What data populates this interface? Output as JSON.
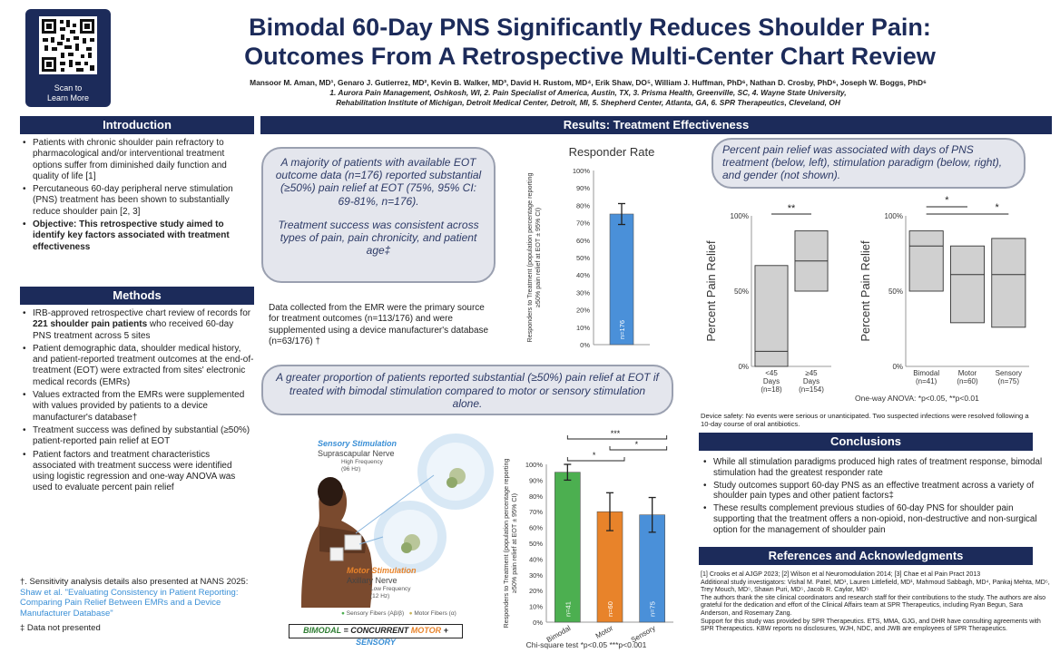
{
  "qr": {
    "caption_line1": "Scan to",
    "caption_line2": "Learn More"
  },
  "header": {
    "title_line1": "Bimodal 60-Day PNS Significantly Reduces Shoulder Pain:",
    "title_line2": "Outcomes From A Retrospective Multi-Center Chart Review",
    "authors": "Mansoor M. Aman, MD¹, Genaro J. Gutierrez, MD², Kevin B. Walker, MD³, David H. Rustom, MD⁴, Erik Shaw, DO⁵, William J. Huffman, PhD⁶, Nathan D. Crosby, PhD⁶, Joseph W. Boggs, PhD⁶",
    "affil_line1": "1. Aurora Pain Management, Oshkosh, WI, 2. Pain Specialist of America, Austin, TX, 3. Prisma Health, Greenville, SC, 4. Wayne State University,",
    "affil_line2": "Rehabilitation Institute of Michigan, Detroit Medical Center, Detroit, MI, 5. Shepherd Center, Atlanta, GA, 6. SPR Therapeutics, Cleveland, OH"
  },
  "introduction": {
    "heading": "Introduction",
    "bullets": [
      "Patients with chronic shoulder pain refractory to pharmacological and/or interventional treatment options suffer from diminished daily function and quality of life [1]",
      "Percutaneous 60-day peripheral nerve stimulation (PNS) treatment has been shown to substantially reduce shoulder pain [2, 3]",
      "Objective: This retrospective study aimed to identify key factors associated with treatment effectiveness"
    ]
  },
  "methods": {
    "heading": "Methods",
    "b1_pre": "IRB-approved retrospective chart review of records for ",
    "b1_bold": "221 shoulder pain patients",
    "b1_post": " who received 60-day PNS treatment across 5 sites",
    "bullets": [
      "Patient demographic data, shoulder medical history, and patient-reported treatment outcomes at the end-of-treatment (EOT) were extracted from sites' electronic medical records (EMRs)",
      "Values extracted from the EMRs were supplemented with values provided by patients to a device manufacturer's database†",
      "Treatment success was defined by substantial (≥50%) patient-reported pain relief at EOT",
      "Patient factors and treatment characteristics associated with treatment success were identified using logistic regression and one-way ANOVA was used to evaluate percent pain relief"
    ],
    "note1_pre": "†. Sensitivity analysis details also presented at NANS 2025: ",
    "note1_link": "Shaw et al. \"Evaluating Consistency in Patient Reporting: Comparing Pain Relief Between EMRs and a Device Manufacturer Database\"",
    "note2": "‡ Data not presented"
  },
  "results": {
    "heading": "Results: Treatment Effectiveness",
    "bubble1_p1": "A majority of patients with available EOT outcome data (n=176) reported substantial (≥50%) pain relief at EOT (75%, 95% CI: 69-81%, n=176).",
    "bubble1_p2": "Treatment success was consistent across types of pain, pain chronicity, and patient age‡",
    "emr_text": "Data collected from the EMR were the primary source for treatment outcomes (n=113/176) and were supplemented using a device manufacturer's database (n=63/176) †",
    "bubble2": "A greater proportion of patients reported substantial (≥50%) pain relief at EOT if treated with bimodal stimulation compared to motor or sensory stimulation alone.",
    "bubble3": "Percent pain relief was associated with days of PNS treatment (below, left), stimulation paradigm (below, right), and gender (not shown).",
    "device_safety": "Device safety: No events were serious or unanticipated. Two suspected infections were resolved following a 10-day course of oral antibiotics."
  },
  "illustration": {
    "sensory_title": "Sensory Stimulation",
    "sensory_nerve": "Suprascapular Nerve",
    "sensory_freq": "High Frequency",
    "sensory_hz": "(96 Hz)",
    "motor_title": "Motor Stimulation",
    "motor_nerve": "Axillary Nerve",
    "motor_freq": "Low Frequency",
    "motor_hz": "(12 Hz)",
    "legend_sensory": "Sensory Fibers (Aβ/β)",
    "legend_motor": "Motor Fibers (α)",
    "bimodal_label": "BIMODAL",
    "equals": " = CONCURRENT ",
    "motor_word": "MOTOR",
    "plus": " + ",
    "sensory_word": "SENSORY",
    "colors": {
      "sensory": "#3a8fd6",
      "motor": "#e8832a",
      "green": "#2e7d32"
    }
  },
  "chart_data": [
    {
      "type": "bar",
      "title": "Responder Rate",
      "ylabel": "Responders to Treatment (population percentage reporting ≥50% pain relief at EOT ± 95% CI)",
      "yticks": [
        "0%",
        "10%",
        "20%",
        "30%",
        "40%",
        "50%",
        "60%",
        "70%",
        "80%",
        "90%",
        "100%"
      ],
      "ylim": [
        0,
        100
      ],
      "categories": [
        ""
      ],
      "values": [
        75
      ],
      "ci": [
        [
          69,
          81
        ]
      ],
      "bar_labels": [
        "n=176"
      ],
      "colors": [
        "#4a90d9"
      ]
    },
    {
      "type": "bar",
      "title": "",
      "ylabel": "Responders to Treatment (population percentage reporting ≥50% pain relief at EOT ± 95% CI)",
      "yticks": [
        "0%",
        "10%",
        "20%",
        "30%",
        "40%",
        "50%",
        "60%",
        "70%",
        "80%",
        "90%",
        "100%"
      ],
      "ylim": [
        0,
        100
      ],
      "categories": [
        "Bimodal",
        "Motor",
        "Sensory"
      ],
      "values": [
        95,
        70,
        68
      ],
      "ci": [
        [
          90,
          100
        ],
        [
          58,
          82
        ],
        [
          57,
          79
        ]
      ],
      "bar_labels": [
        "n=41",
        "n=60",
        "n=75"
      ],
      "colors": [
        "#4caf50",
        "#e8832a",
        "#4a90d9"
      ],
      "significance": [
        "***",
        "*",
        "*"
      ],
      "footnote": "Chi-square test *p<0.05 ***p<0.001"
    },
    {
      "type": "box",
      "title": "",
      "ylabel": "Percent Pain Relief",
      "yticks": [
        "0%",
        "50%",
        "100%"
      ],
      "ylim": [
        0,
        100
      ],
      "categories": [
        "<45 Days (n=18)",
        "≥45 Days (n=154)"
      ],
      "cat_line1": [
        "<45",
        "≥45"
      ],
      "cat_line2": [
        "Days",
        "Days"
      ],
      "cat_line3": [
        "(n=18)",
        "(n=154)"
      ],
      "boxes": [
        {
          "q1": 0,
          "median": 10,
          "q3": 67
        },
        {
          "q1": 50,
          "median": 70,
          "q3": 90
        }
      ],
      "significance": [
        "**"
      ]
    },
    {
      "type": "box",
      "title": "",
      "ylabel": "Percent Pain Relief",
      "yticks": [
        "0%",
        "50%",
        "100%"
      ],
      "ylim": [
        0,
        100
      ],
      "categories": [
        "Bimodal (n=41)",
        "Motor (n=60)",
        "Sensory (n=75)"
      ],
      "cat_line1": [
        "Bimodal",
        "Motor",
        "Sensory"
      ],
      "cat_line2": [
        "(n=41)",
        "(n=60)",
        "(n=75)"
      ],
      "boxes": [
        {
          "q1": 50,
          "median": 80,
          "q3": 90
        },
        {
          "q1": 29,
          "median": 61,
          "q3": 80
        },
        {
          "q1": 26,
          "median": 61,
          "q3": 85
        }
      ],
      "significance": [
        "*",
        "*"
      ],
      "footnote": "One-way ANOVA: *p<0.05, **p<0.01"
    }
  ],
  "conclusions": {
    "heading": "Conclusions",
    "bullets": [
      "While all stimulation paradigms produced high rates of treatment response, bimodal stimulation had the greatest responder rate",
      "Study outcomes support 60-day PNS as an effective treatment across a variety of shoulder pain types and other patient factors‡",
      "These results complement previous studies of 60-day PNS for shoulder pain supporting that the treatment offers a non-opioid, non-destructive and non-surgical option for the management of shoulder pain"
    ]
  },
  "references": {
    "heading": "References and Acknowledgments",
    "refs": "[1] Crooks et al AJGP 2023; [2] Wilson et al Neuromodulation 2014; [3] Chae et al Pain Pract 2013",
    "investigators": "Additional study investigators: Vishal M. Patel, MD¹, Lauren Littlefield, MD¹, Mahmoud Sabbagh, MD⁴, Pankaj Mehta, MD⁵, Trey Mouch, MD⁵, Shawn Puri, MD⁵, Jacob R. Caylor, MD⁵",
    "thanks": "The authors thank the site clinical coordinators and research staff for their contributions to the study. The authors are also grateful for the dedication and effort of the Clinical Affairs team at SPR Therapeutics, including Ryan Begun, Sara Anderson, and Rosemary Zang.",
    "support": "Support for this study was provided by SPR Therapeutics. ETS, MMA, GJG, and DHR have consulting agreements with SPR Therapeutics. KBW reports no disclosures, WJH, NDC, and JWB are employees of SPR Therapeutics."
  }
}
